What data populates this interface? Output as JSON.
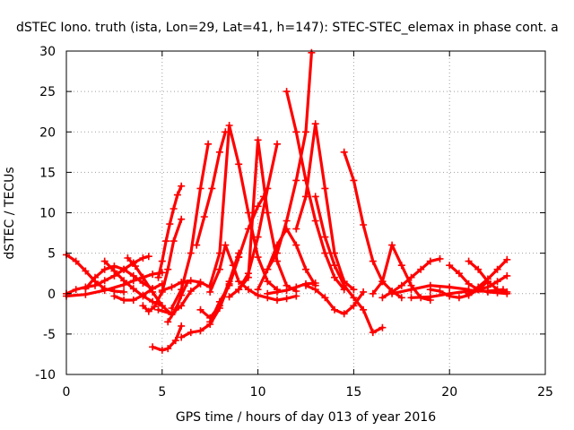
{
  "chart_data": {
    "type": "scatter",
    "title": "dSTEC Iono. truth (ista, Lon=29, Lat=41, h=147): STEC-STEC_elemax in phase cont. a",
    "xlabel": "GPS time / hours of day 013 of year 2016",
    "ylabel": "dSTEC  / TECUs",
    "xlim": [
      0,
      25
    ],
    "ylim": [
      -10,
      30
    ],
    "xticks": [
      0,
      5,
      10,
      15,
      20,
      25
    ],
    "yticks": [
      -10,
      -5,
      0,
      5,
      10,
      15,
      20,
      25,
      30
    ],
    "xtick_labels": [
      "0",
      "5",
      "10",
      "15",
      "20",
      "25"
    ],
    "ytick_labels": [
      "-10",
      "-5",
      "0",
      "5",
      "10",
      "15",
      "20",
      "25",
      "30"
    ],
    "grid": true,
    "marker": "plus",
    "color": "#ff0000",
    "series": [
      {
        "x": [
          0.0,
          0.5,
          1.0,
          1.5,
          2.0,
          2.5,
          3.0
        ],
        "y": [
          4.8,
          4.0,
          2.8,
          1.5,
          0.6,
          0.3,
          0.2
        ]
      },
      {
        "x": [
          0.0,
          0.5,
          1.0,
          1.5,
          2.0,
          2.5,
          3.0,
          3.5,
          4.0,
          4.3
        ],
        "y": [
          0.0,
          0.5,
          0.8,
          1.0,
          1.6,
          2.2,
          3.0,
          3.8,
          4.4,
          4.6
        ]
      },
      {
        "x": [
          0.0,
          1.0,
          2.0,
          3.0,
          3.5,
          4.0,
          4.5,
          5.0
        ],
        "y": [
          -0.3,
          -0.1,
          0.4,
          1.1,
          1.6,
          2.0,
          2.4,
          2.6
        ]
      },
      {
        "x": [
          1.0,
          1.5,
          2.0,
          2.5,
          3.0,
          3.5,
          4.0,
          4.5
        ],
        "y": [
          0.6,
          2.0,
          3.0,
          3.4,
          3.0,
          2.2,
          1.3,
          0.6
        ]
      },
      {
        "x": [
          2.0,
          2.5,
          3.0,
          3.5,
          4.0,
          4.5,
          5.0
        ],
        "y": [
          4.0,
          2.8,
          1.6,
          0.6,
          -0.3,
          -1.0,
          -1.5
        ]
      },
      {
        "x": [
          2.5,
          3.0,
          3.5,
          4.0,
          4.5,
          5.0
        ],
        "y": [
          -0.3,
          -0.8,
          -0.8,
          -0.2,
          0.6,
          1.2
        ]
      },
      {
        "x": [
          3.2,
          3.6,
          4.0,
          4.5,
          5.0,
          5.5
        ],
        "y": [
          4.4,
          3.4,
          2.0,
          0.2,
          -1.5,
          -2.6
        ]
      },
      {
        "x": [
          4.5,
          5.0,
          5.3,
          5.7,
          6.0
        ],
        "y": [
          -6.6,
          -7.0,
          -6.8,
          -5.8,
          -4.0
        ]
      },
      {
        "x": [
          4.0,
          4.3,
          4.6,
          5.0,
          5.3,
          5.6,
          6.0
        ],
        "y": [
          -1.5,
          -2.2,
          -1.6,
          0.2,
          3.0,
          6.5,
          9.2
        ]
      },
      {
        "x": [
          4.8,
          5.0,
          5.2,
          5.4,
          5.6,
          5.8,
          6.0
        ],
        "y": [
          2.0,
          4.0,
          6.5,
          8.6,
          10.5,
          12.2,
          13.3
        ]
      },
      {
        "x": [
          4.8,
          5.5,
          6.0,
          6.5,
          7.0
        ],
        "y": [
          -2.0,
          -2.5,
          -1.5,
          0.3,
          1.2
        ]
      },
      {
        "x": [
          5.0,
          5.5,
          6.0,
          6.5,
          7.0,
          7.5
        ],
        "y": [
          0.4,
          0.8,
          1.4,
          1.6,
          1.4,
          0.8
        ]
      },
      {
        "x": [
          5.3,
          5.7,
          6.0,
          6.3
        ],
        "y": [
          -3.5,
          -2.0,
          -0.2,
          1.3
        ]
      },
      {
        "x": [
          6.0,
          6.5,
          7.0,
          7.5,
          8.0,
          8.5,
          9.0,
          9.5,
          10.0,
          10.3
        ],
        "y": [
          -5.4,
          -4.8,
          -4.6,
          -3.8,
          -1.8,
          1.2,
          4.5,
          8.0,
          10.8,
          12.0
        ]
      },
      {
        "x": [
          5.5,
          6.0,
          6.5,
          7.0,
          7.4
        ],
        "y": [
          -1.8,
          0.5,
          5.0,
          13.0,
          18.5
        ]
      },
      {
        "x": [
          6.8,
          7.2,
          7.6,
          8.0,
          8.3
        ],
        "y": [
          6.0,
          9.5,
          13.0,
          17.5,
          20.0
        ]
      },
      {
        "x": [
          7.0,
          7.5,
          8.0,
          8.5,
          9.0
        ],
        "y": [
          -2.0,
          -3.0,
          -1.5,
          1.5,
          5.0
        ]
      },
      {
        "x": [
          7.5,
          8.0,
          8.5,
          9.0,
          9.5,
          10.0,
          10.5,
          11.0
        ],
        "y": [
          1.0,
          5.0,
          20.8,
          16.0,
          10.0,
          4.5,
          1.5,
          0.5
        ]
      },
      {
        "x": [
          7.5,
          8.0,
          8.5,
          9.0
        ],
        "y": [
          -3.5,
          -1.0,
          1.0,
          4.5
        ]
      },
      {
        "x": [
          7.5,
          8.0,
          8.3,
          8.7,
          9.0,
          9.5,
          10.0,
          10.5,
          11.0,
          11.5,
          12.0
        ],
        "y": [
          0.2,
          3.0,
          6.0,
          3.5,
          1.5,
          0.5,
          -0.2,
          -0.5,
          -0.8,
          -0.6,
          -0.3
        ]
      },
      {
        "x": [
          8.5,
          9.0,
          9.5,
          10.0,
          10.5,
          11.0,
          11.5,
          12.0
        ],
        "y": [
          -0.4,
          0.5,
          2.0,
          19.0,
          10.0,
          4.0,
          1.0,
          0.3
        ]
      },
      {
        "x": [
          9.0,
          9.5,
          10.0,
          10.5,
          11.0
        ],
        "y": [
          0.5,
          2.5,
          7.0,
          13.0,
          18.5
        ]
      },
      {
        "x": [
          10.0,
          10.5,
          11.0,
          11.5,
          12.0,
          12.5,
          13.0
        ],
        "y": [
          0.5,
          3.0,
          6.0,
          8.0,
          6.0,
          3.0,
          1.0
        ]
      },
      {
        "x": [
          10.5,
          11.0,
          11.5,
          12.0,
          12.5,
          13.0
        ],
        "y": [
          0.0,
          0.2,
          0.4,
          0.8,
          1.2,
          1.3
        ]
      },
      {
        "x": [
          11.5,
          12.0,
          12.5,
          13.0,
          13.5,
          14.0,
          14.5
        ],
        "y": [
          25.0,
          20.0,
          14.0,
          9.0,
          5.0,
          2.0,
          0.5
        ]
      },
      {
        "x": [
          10.5,
          11.0,
          11.5,
          12.0,
          12.5,
          12.8
        ],
        "y": [
          3.0,
          5.0,
          9.0,
          14.0,
          20.0,
          29.8
        ]
      },
      {
        "x": [
          12.0,
          12.5,
          13.0,
          13.5,
          14.0,
          14.5,
          15.0
        ],
        "y": [
          8.0,
          12.0,
          21.0,
          13.0,
          5.0,
          1.5,
          0.5
        ]
      },
      {
        "x": [
          12.5,
          13.0,
          13.5,
          14.0,
          14.5,
          15.0,
          15.5
        ],
        "y": [
          1.0,
          0.5,
          -0.5,
          -2.0,
          -2.5,
          -1.5,
          0.2
        ]
      },
      {
        "x": [
          13.0,
          13.5,
          14.0,
          14.5,
          15.0,
          15.5,
          16.0,
          16.5
        ],
        "y": [
          12.0,
          7.0,
          3.5,
          1.0,
          -0.5,
          -2.0,
          -4.8,
          -4.2
        ]
      },
      {
        "x": [
          14.5,
          15.0,
          15.5,
          16.0,
          16.5,
          17.0,
          17.5
        ],
        "y": [
          17.5,
          14.0,
          8.5,
          4.0,
          1.5,
          0.3,
          -0.5
        ]
      },
      {
        "x": [
          16.0,
          16.5,
          17.0,
          17.5,
          18.0,
          18.5,
          19.0
        ],
        "y": [
          0.0,
          1.5,
          6.0,
          3.5,
          1.0,
          -0.5,
          -0.8
        ]
      },
      {
        "x": [
          16.5,
          17.0,
          17.5,
          18.0,
          18.5,
          19.0,
          19.5
        ],
        "y": [
          -0.5,
          0.2,
          1.0,
          2.0,
          3.0,
          4.0,
          4.3
        ]
      },
      {
        "x": [
          17.0,
          18.0,
          19.0,
          20.0,
          21.0
        ],
        "y": [
          0.0,
          0.5,
          1.0,
          0.8,
          0.5
        ]
      },
      {
        "x": [
          18.0,
          19.0,
          20.0,
          21.0,
          22.0,
          22.8
        ],
        "y": [
          -0.5,
          -0.4,
          0.0,
          0.3,
          0.3,
          0.5
        ]
      },
      {
        "x": [
          19.0,
          19.5,
          20.0,
          20.5,
          21.0,
          21.5,
          22.0
        ],
        "y": [
          0.5,
          0.3,
          -0.3,
          -0.5,
          -0.2,
          0.5,
          1.5
        ]
      },
      {
        "x": [
          20.0,
          20.5,
          21.0,
          21.5,
          22.0,
          22.5,
          23.0
        ],
        "y": [
          3.5,
          2.5,
          1.2,
          0.5,
          0.2,
          0.1,
          0.0
        ]
      },
      {
        "x": [
          21.0,
          21.5,
          22.0,
          22.5,
          23.0
        ],
        "y": [
          4.0,
          3.0,
          1.5,
          0.5,
          0.2
        ]
      },
      {
        "x": [
          21.0,
          21.5,
          22.0,
          22.5,
          23.0
        ],
        "y": [
          0.0,
          0.8,
          1.8,
          3.0,
          4.2
        ]
      },
      {
        "x": [
          21.5,
          22.0,
          22.5,
          23.0
        ],
        "y": [
          0.5,
          0.8,
          1.5,
          2.2
        ]
      }
    ]
  }
}
